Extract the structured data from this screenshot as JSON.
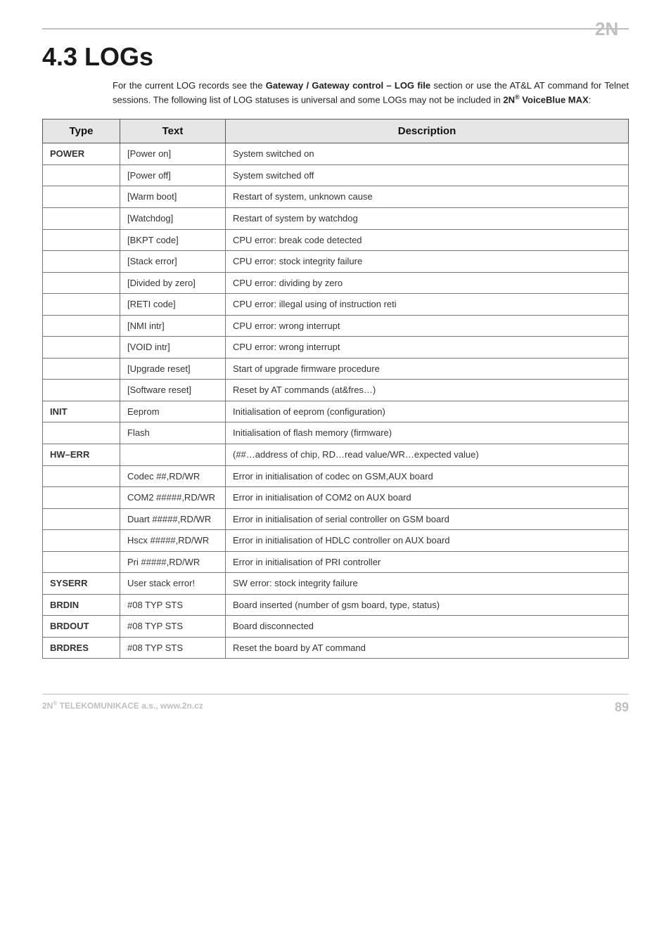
{
  "logo": {
    "fill": "#bfbfbf",
    "text": "2N"
  },
  "section": {
    "heading": "4.3 LOGs",
    "intro_parts": [
      "For the current LOG records see the ",
      "Gateway / Gateway control – LOG file",
      " section or use the AT&L AT command for Telnet sessions. The following list of LOG statuses is universal and some LOGs may not be included in ",
      "2N",
      "®",
      " VoiceBlue MAX",
      ":"
    ]
  },
  "table": {
    "headers": [
      "Type",
      "Text",
      "Description"
    ],
    "rows": [
      {
        "type": "POWER",
        "text": "[Power on]",
        "desc": "System switched on"
      },
      {
        "type": "",
        "text": "[Power off]",
        "desc": "System switched off"
      },
      {
        "type": "",
        "text": "[Warm boot]",
        "desc": "Restart of system, unknown cause"
      },
      {
        "type": "",
        "text": "[Watchdog]",
        "desc": "Restart of system by watchdog"
      },
      {
        "type": "",
        "text": "[BKPT code]",
        "desc": "CPU error: break code detected"
      },
      {
        "type": "",
        "text": "[Stack error]",
        "desc": "CPU error: stock integrity failure"
      },
      {
        "type": "",
        "text": "[Divided by zero]",
        "desc": "CPU error: dividing by zero"
      },
      {
        "type": "",
        "text": "[RETI code]",
        "desc": "CPU error: illegal using of instruction reti"
      },
      {
        "type": "",
        "text": "[NMI intr]",
        "desc": "CPU error: wrong interrupt"
      },
      {
        "type": "",
        "text": "[VOID intr]",
        "desc": "CPU error: wrong interrupt"
      },
      {
        "type": "",
        "text": "[Upgrade reset]",
        "desc": "Start of upgrade firmware procedure"
      },
      {
        "type": "",
        "text": "[Software reset]",
        "desc": "Reset by AT commands (at&fres…)"
      },
      {
        "type": "INIT",
        "text": "Eeprom",
        "desc": "Initialisation of eeprom (configuration)"
      },
      {
        "type": "",
        "text": "Flash",
        "desc": "Initialisation of flash memory (firmware)"
      },
      {
        "type": "HW–ERR",
        "text": "",
        "desc": "(##…address of chip, RD…read value/WR…expected value)"
      },
      {
        "type": "",
        "text": "Codec ##,RD/WR",
        "desc": "Error in initialisation of codec on GSM,AUX board"
      },
      {
        "type": "",
        "text": "COM2 #####,RD/WR",
        "desc": "Error in initialisation of COM2 on AUX board"
      },
      {
        "type": "",
        "text": "Duart #####,RD/WR",
        "desc": "Error in initialisation of serial controller on GSM board"
      },
      {
        "type": "",
        "text": "Hscx #####,RD/WR",
        "desc": "Error in initialisation of HDLC controller on AUX board"
      },
      {
        "type": "",
        "text": "Pri #####,RD/WR",
        "desc": "Error in initialisation of PRI controller"
      },
      {
        "type": "SYSERR",
        "text": "User stack error!",
        "desc": "SW error: stock integrity failure"
      },
      {
        "type": "BRDIN",
        "text": "#08 TYP STS",
        "desc": "Board inserted (number of gsm board, type, status)"
      },
      {
        "type": "BRDOUT",
        "text": "#08 TYP STS",
        "desc": "Board disconnected"
      },
      {
        "type": "BRDRES",
        "text": "#08 TYP STS",
        "desc": "Reset the board by AT command"
      }
    ]
  },
  "footer": {
    "company_prefix": "2N",
    "company_sup": "®",
    "company_rest": " TELEKOMUNIKACE a.s., www.2n.cz",
    "page": "89"
  },
  "colors": {
    "rule": "#bfbfbf",
    "header_bg": "#e6e6e6",
    "border_dark": "#555555",
    "border": "#777777",
    "text": "#333333",
    "footer_text": "#bfbfbf"
  }
}
